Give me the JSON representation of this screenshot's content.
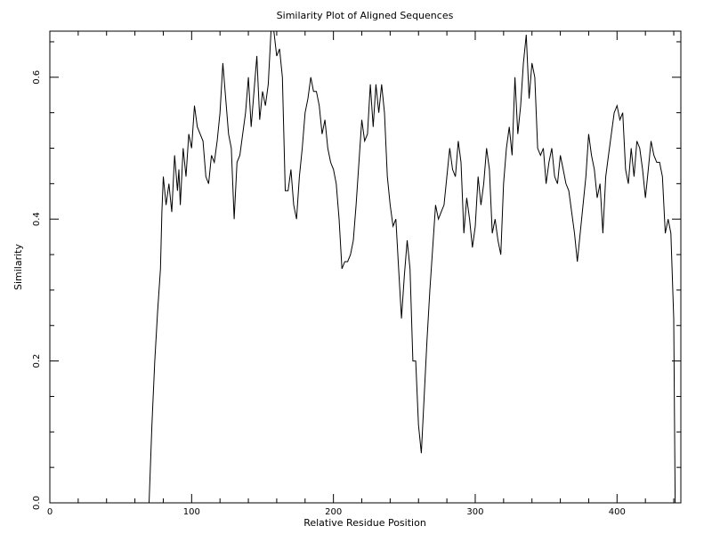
{
  "chart_data": {
    "type": "line",
    "title": "Similarity Plot of Aligned Sequences",
    "xlabel": "Relative Residue Position",
    "ylabel": "Similarity",
    "xlim": [
      0,
      445
    ],
    "ylim": [
      0,
      0.665
    ],
    "x_ticks": [
      {
        "value": 0,
        "label": "0"
      },
      {
        "value": 100,
        "label": "100"
      },
      {
        "value": 200,
        "label": "200"
      },
      {
        "value": 300,
        "label": "300"
      },
      {
        "value": 400,
        "label": "400"
      }
    ],
    "x_minor_step": 20,
    "y_ticks": [
      {
        "value": 0.0,
        "label": "0.0"
      },
      {
        "value": 0.2,
        "label": "0.2"
      },
      {
        "value": 0.4,
        "label": "0.4"
      },
      {
        "value": 0.6,
        "label": "0.6"
      }
    ],
    "y_minor_step": 0.05,
    "grid": false,
    "series": [
      {
        "color": "#000000",
        "points": [
          [
            70,
            0.0
          ],
          [
            72,
            0.11
          ],
          [
            74,
            0.2
          ],
          [
            76,
            0.27
          ],
          [
            78,
            0.33
          ],
          [
            79,
            0.41
          ],
          [
            80,
            0.46
          ],
          [
            82,
            0.42
          ],
          [
            84,
            0.45
          ],
          [
            86,
            0.41
          ],
          [
            88,
            0.49
          ],
          [
            90,
            0.44
          ],
          [
            91,
            0.47
          ],
          [
            92,
            0.42
          ],
          [
            94,
            0.5
          ],
          [
            96,
            0.46
          ],
          [
            98,
            0.52
          ],
          [
            100,
            0.5
          ],
          [
            102,
            0.56
          ],
          [
            104,
            0.53
          ],
          [
            106,
            0.52
          ],
          [
            108,
            0.51
          ],
          [
            110,
            0.46
          ],
          [
            112,
            0.45
          ],
          [
            114,
            0.49
          ],
          [
            116,
            0.48
          ],
          [
            118,
            0.51
          ],
          [
            120,
            0.55
          ],
          [
            122,
            0.62
          ],
          [
            124,
            0.57
          ],
          [
            126,
            0.52
          ],
          [
            128,
            0.5
          ],
          [
            130,
            0.4
          ],
          [
            132,
            0.48
          ],
          [
            134,
            0.49
          ],
          [
            136,
            0.52
          ],
          [
            138,
            0.55
          ],
          [
            140,
            0.6
          ],
          [
            142,
            0.53
          ],
          [
            144,
            0.58
          ],
          [
            146,
            0.63
          ],
          [
            148,
            0.54
          ],
          [
            150,
            0.58
          ],
          [
            152,
            0.56
          ],
          [
            154,
            0.59
          ],
          [
            156,
            0.67
          ],
          [
            158,
            0.665
          ],
          [
            160,
            0.63
          ],
          [
            162,
            0.64
          ],
          [
            164,
            0.6
          ],
          [
            166,
            0.44
          ],
          [
            168,
            0.44
          ],
          [
            170,
            0.47
          ],
          [
            172,
            0.42
          ],
          [
            174,
            0.4
          ],
          [
            176,
            0.46
          ],
          [
            178,
            0.5
          ],
          [
            180,
            0.55
          ],
          [
            182,
            0.57
          ],
          [
            184,
            0.6
          ],
          [
            186,
            0.58
          ],
          [
            188,
            0.58
          ],
          [
            190,
            0.56
          ],
          [
            192,
            0.52
          ],
          [
            194,
            0.54
          ],
          [
            196,
            0.5
          ],
          [
            198,
            0.48
          ],
          [
            200,
            0.47
          ],
          [
            202,
            0.45
          ],
          [
            204,
            0.4
          ],
          [
            206,
            0.33
          ],
          [
            208,
            0.34
          ],
          [
            210,
            0.34
          ],
          [
            212,
            0.35
          ],
          [
            214,
            0.37
          ],
          [
            216,
            0.42
          ],
          [
            218,
            0.48
          ],
          [
            220,
            0.54
          ],
          [
            222,
            0.51
          ],
          [
            224,
            0.52
          ],
          [
            226,
            0.59
          ],
          [
            228,
            0.53
          ],
          [
            230,
            0.59
          ],
          [
            232,
            0.55
          ],
          [
            234,
            0.59
          ],
          [
            236,
            0.55
          ],
          [
            238,
            0.46
          ],
          [
            240,
            0.42
          ],
          [
            242,
            0.39
          ],
          [
            244,
            0.4
          ],
          [
            246,
            0.33
          ],
          [
            248,
            0.26
          ],
          [
            250,
            0.32
          ],
          [
            252,
            0.37
          ],
          [
            254,
            0.33
          ],
          [
            256,
            0.2
          ],
          [
            258,
            0.2
          ],
          [
            260,
            0.11
          ],
          [
            262,
            0.07
          ],
          [
            264,
            0.15
          ],
          [
            266,
            0.23
          ],
          [
            268,
            0.3
          ],
          [
            270,
            0.36
          ],
          [
            272,
            0.42
          ],
          [
            274,
            0.4
          ],
          [
            276,
            0.41
          ],
          [
            278,
            0.42
          ],
          [
            280,
            0.46
          ],
          [
            282,
            0.5
          ],
          [
            284,
            0.47
          ],
          [
            286,
            0.46
          ],
          [
            288,
            0.51
          ],
          [
            290,
            0.48
          ],
          [
            292,
            0.38
          ],
          [
            294,
            0.43
          ],
          [
            296,
            0.4
          ],
          [
            298,
            0.36
          ],
          [
            300,
            0.39
          ],
          [
            302,
            0.46
          ],
          [
            304,
            0.42
          ],
          [
            306,
            0.45
          ],
          [
            308,
            0.5
          ],
          [
            310,
            0.47
          ],
          [
            312,
            0.38
          ],
          [
            314,
            0.4
          ],
          [
            316,
            0.37
          ],
          [
            318,
            0.35
          ],
          [
            320,
            0.45
          ],
          [
            322,
            0.5
          ],
          [
            324,
            0.53
          ],
          [
            326,
            0.49
          ],
          [
            328,
            0.6
          ],
          [
            330,
            0.52
          ],
          [
            332,
            0.56
          ],
          [
            334,
            0.62
          ],
          [
            336,
            0.66
          ],
          [
            338,
            0.57
          ],
          [
            340,
            0.62
          ],
          [
            342,
            0.6
          ],
          [
            344,
            0.5
          ],
          [
            346,
            0.49
          ],
          [
            348,
            0.5
          ],
          [
            350,
            0.45
          ],
          [
            352,
            0.48
          ],
          [
            354,
            0.5
          ],
          [
            356,
            0.46
          ],
          [
            358,
            0.45
          ],
          [
            360,
            0.49
          ],
          [
            362,
            0.47
          ],
          [
            364,
            0.45
          ],
          [
            366,
            0.44
          ],
          [
            368,
            0.41
          ],
          [
            370,
            0.38
          ],
          [
            372,
            0.34
          ],
          [
            374,
            0.38
          ],
          [
            376,
            0.42
          ],
          [
            378,
            0.46
          ],
          [
            380,
            0.52
          ],
          [
            382,
            0.49
          ],
          [
            384,
            0.47
          ],
          [
            386,
            0.43
          ],
          [
            388,
            0.45
          ],
          [
            390,
            0.38
          ],
          [
            392,
            0.46
          ],
          [
            394,
            0.49
          ],
          [
            396,
            0.52
          ],
          [
            398,
            0.55
          ],
          [
            400,
            0.56
          ],
          [
            402,
            0.54
          ],
          [
            404,
            0.55
          ],
          [
            406,
            0.47
          ],
          [
            408,
            0.45
          ],
          [
            410,
            0.5
          ],
          [
            412,
            0.46
          ],
          [
            414,
            0.51
          ],
          [
            416,
            0.5
          ],
          [
            418,
            0.47
          ],
          [
            420,
            0.43
          ],
          [
            422,
            0.47
          ],
          [
            424,
            0.51
          ],
          [
            426,
            0.49
          ],
          [
            428,
            0.48
          ],
          [
            430,
            0.48
          ],
          [
            432,
            0.46
          ],
          [
            434,
            0.38
          ],
          [
            436,
            0.4
          ],
          [
            438,
            0.38
          ],
          [
            440,
            0.26
          ],
          [
            441,
            0.0
          ]
        ]
      }
    ]
  }
}
